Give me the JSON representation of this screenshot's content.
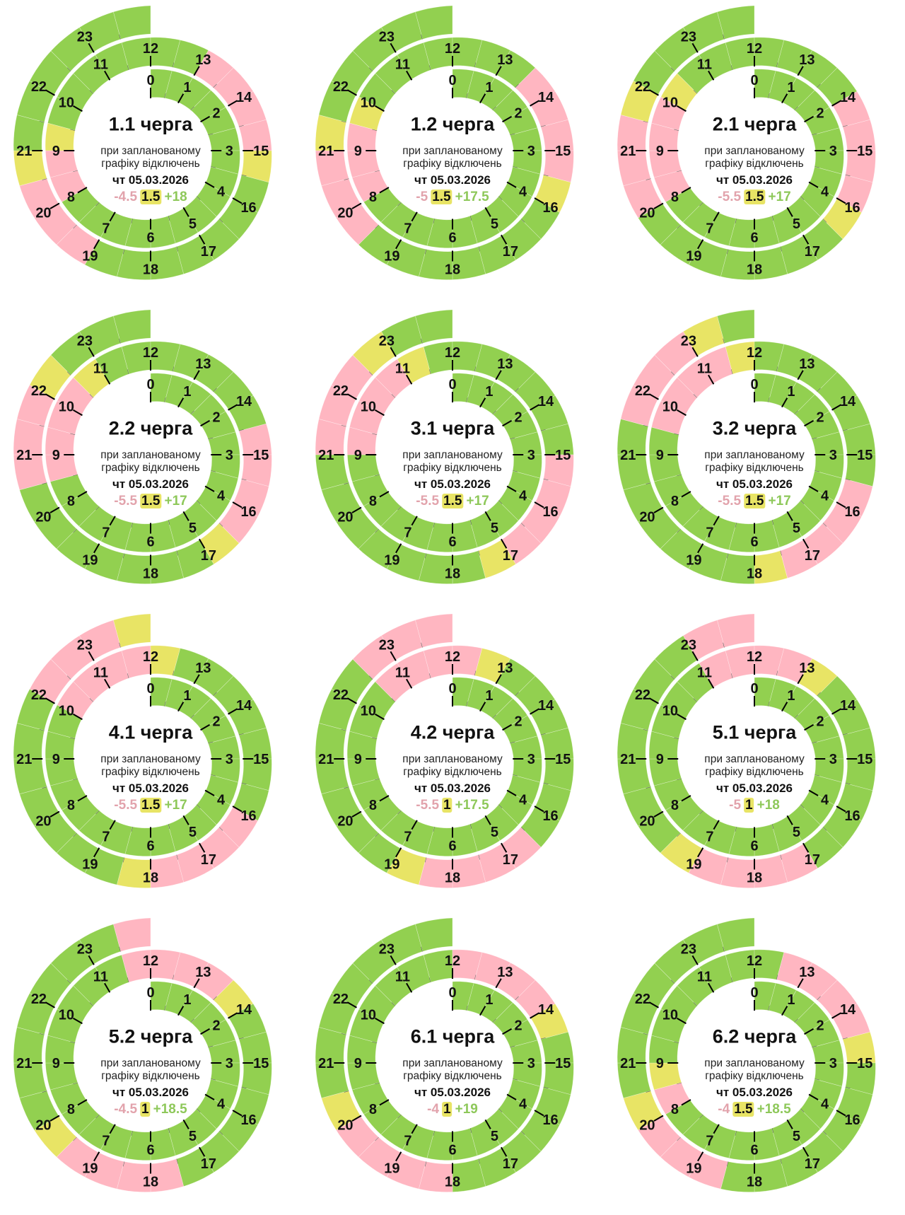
{
  "colors": {
    "on": "#92d050",
    "off": "#ffb6c1",
    "maybe": "#e8e465",
    "off_text": "#e2a3ac",
    "on_text": "#8ec85a"
  },
  "caption": {
    "line1": "при запланованому",
    "line2": "графіку відключень",
    "date": "чт 05.03.2026"
  },
  "hour_labels": [
    "0",
    "1",
    "2",
    "3",
    "4",
    "5",
    "6",
    "7",
    "8",
    "9",
    "10",
    "11",
    "12",
    "13",
    "14",
    "15",
    "16",
    "17",
    "18",
    "19",
    "20",
    "21",
    "22",
    "23"
  ],
  "chart_data": [
    {
      "type": "pie",
      "title": "1.1 черга",
      "summary": {
        "off": "-4.5",
        "maybe": "1.5",
        "on": "+18"
      },
      "off_hours": [
        [
          8,
          9
        ],
        [
          13,
          15
        ],
        [
          19,
          20.5
        ]
      ],
      "maybe_hours": [
        [
          9,
          9.5
        ],
        [
          15,
          15.5
        ],
        [
          20.5,
          21
        ]
      ]
    },
    {
      "type": "pie",
      "title": "1.2 черга",
      "summary": {
        "off": "-5",
        "maybe": "1.5",
        "on": "+17.5"
      },
      "off_hours": [
        [
          8,
          9.5
        ],
        [
          13.5,
          15.5
        ],
        [
          19.5,
          21
        ]
      ],
      "maybe_hours": [
        [
          9.5,
          10
        ],
        [
          15.5,
          16
        ],
        [
          21,
          21.5
        ]
      ]
    },
    {
      "type": "pie",
      "title": "2.1 черга",
      "summary": {
        "off": "-5.5",
        "maybe": "1.5",
        "on": "+17"
      },
      "off_hours": [
        [
          8,
          10
        ],
        [
          14,
          16
        ],
        [
          20,
          21.5
        ]
      ],
      "maybe_hours": [
        [
          10,
          10.5
        ],
        [
          16,
          16.5
        ],
        [
          21.5,
          22
        ]
      ]
    },
    {
      "type": "pie",
      "title": "2.2 черга",
      "summary": {
        "off": "-5.5",
        "maybe": "1.5",
        "on": "+17"
      },
      "off_hours": [
        [
          8.5,
          10.5
        ],
        [
          14.5,
          16.5
        ],
        [
          20.5,
          22
        ]
      ],
      "maybe_hours": [
        [
          10.5,
          11
        ],
        [
          16.5,
          17
        ],
        [
          22,
          22.5
        ]
      ]
    },
    {
      "type": "pie",
      "title": "3.1 черга",
      "summary": {
        "off": "-5.5",
        "maybe": "1.5",
        "on": "+17"
      },
      "off_hours": [
        [
          9,
          11
        ],
        [
          15,
          17
        ],
        [
          21,
          22.5
        ]
      ],
      "maybe_hours": [
        [
          11,
          11.5
        ],
        [
          17,
          17.5
        ],
        [
          22.5,
          23
        ]
      ]
    },
    {
      "type": "pie",
      "title": "3.2 черга",
      "summary": {
        "off": "-5.5",
        "maybe": "1.5",
        "on": "+17"
      },
      "off_hours": [
        [
          9.5,
          11.5
        ],
        [
          15.5,
          17.5
        ],
        [
          21.5,
          23
        ]
      ],
      "maybe_hours": [
        [
          11.5,
          12
        ],
        [
          17.5,
          18
        ],
        [
          23,
          23.5
        ]
      ]
    },
    {
      "type": "pie",
      "title": "4.1 черга",
      "summary": {
        "off": "-5.5",
        "maybe": "1.5",
        "on": "+17"
      },
      "off_hours": [
        [
          10,
          12
        ],
        [
          16,
          18
        ],
        [
          22,
          23.5
        ]
      ],
      "maybe_hours": [
        [
          12,
          12.5
        ],
        [
          18,
          18.5
        ],
        [
          23.5,
          24
        ]
      ]
    },
    {
      "type": "pie",
      "title": "4.2 черга",
      "summary": {
        "off": "-5.5",
        "maybe": "1",
        "on": "+17.5"
      },
      "off_hours": [
        [
          10.5,
          12.5
        ],
        [
          16.5,
          18.5
        ],
        [
          22.5,
          24
        ]
      ],
      "maybe_hours": [
        [
          12.5,
          13
        ],
        [
          18.5,
          19
        ]
      ]
    },
    {
      "type": "pie",
      "title": "5.1 черга",
      "summary": {
        "off": "-5",
        "maybe": "1",
        "on": "+18"
      },
      "off_hours": [
        [
          11,
          13
        ],
        [
          17,
          19
        ],
        [
          23,
          24
        ]
      ],
      "maybe_hours": [
        [
          13,
          13.5
        ],
        [
          19,
          19.5
        ]
      ]
    },
    {
      "type": "pie",
      "title": "5.2 черга",
      "summary": {
        "off": "-4.5",
        "maybe": "1",
        "on": "+18.5"
      },
      "off_hours": [
        [
          11.5,
          13.5
        ],
        [
          17.5,
          19.5
        ],
        [
          23.5,
          24
        ]
      ],
      "maybe_hours": [
        [
          13.5,
          14
        ],
        [
          19.5,
          20
        ]
      ]
    },
    {
      "type": "pie",
      "title": "6.1 черга",
      "summary": {
        "off": "-4",
        "maybe": "1",
        "on": "+19"
      },
      "off_hours": [
        [
          12,
          14
        ],
        [
          18,
          20
        ]
      ],
      "maybe_hours": [
        [
          14,
          14.5
        ],
        [
          20,
          20.5
        ]
      ]
    },
    {
      "type": "pie",
      "title": "6.2 черга",
      "summary": {
        "off": "-4",
        "maybe": "1.5",
        "on": "+18.5"
      },
      "off_hours": [
        [
          8,
          8.5
        ],
        [
          12.5,
          14.5
        ],
        [
          18.5,
          20
        ]
      ],
      "maybe_hours": [
        [
          8.5,
          9
        ],
        [
          14.5,
          15
        ],
        [
          20,
          20.5
        ]
      ]
    }
  ]
}
